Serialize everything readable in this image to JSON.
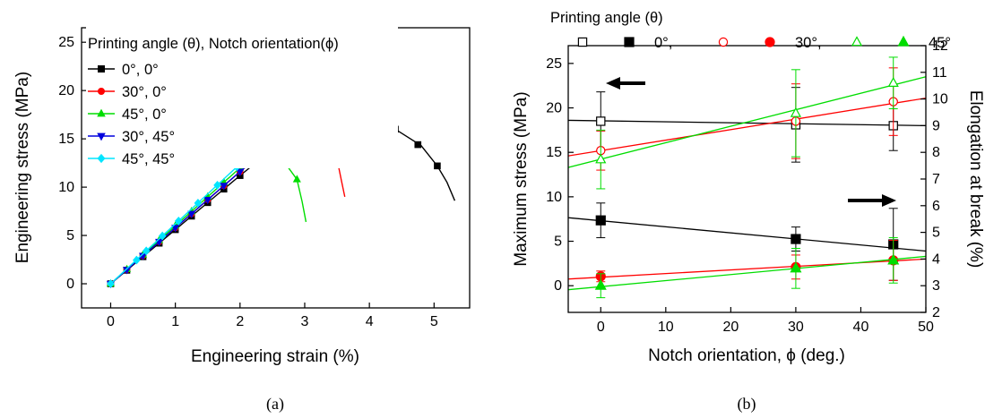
{
  "figure_panels": [
    "(a)",
    "(b)"
  ],
  "chart_data": [
    {
      "type": "line",
      "panel": "(a)",
      "xlabel": "Engineering strain (%)",
      "ylabel": "Engineering stress (MPa)",
      "xlim": [
        -0.45,
        5.55
      ],
      "ylim": [
        -2.5,
        26.5
      ],
      "xticks": [
        0,
        1,
        2,
        3,
        4,
        5
      ],
      "yticks": [
        0,
        5,
        10,
        15,
        20,
        25
      ],
      "grid": false,
      "legend_title": "Printing angle (θ), Notch orientation(ϕ)",
      "legend_position": "top-left",
      "series": [
        {
          "name": "0°, 0°",
          "color": "#000000",
          "marker": "square",
          "line": [
            [
              0,
              0
            ],
            [
              1,
              5.6
            ],
            [
              2,
              11.2
            ],
            [
              3,
              16.6
            ],
            [
              3.65,
              18.4
            ],
            [
              3.72,
              16.6
            ],
            [
              3.86,
              16.7
            ],
            [
              4.0,
              16.9
            ],
            [
              4.1,
              16.8
            ],
            [
              4.4,
              16.0
            ],
            [
              4.8,
              14.3
            ],
            [
              5.05,
              12.2
            ],
            [
              5.2,
              10.5
            ],
            [
              5.32,
              8.6
            ]
          ],
          "markers": [
            [
              0,
              0
            ],
            [
              0.25,
              1.4
            ],
            [
              0.5,
              2.8
            ],
            [
              0.75,
              4.2
            ],
            [
              1,
              5.6
            ],
            [
              1.25,
              7.0
            ],
            [
              1.5,
              8.4
            ],
            [
              1.75,
              9.8
            ],
            [
              2.0,
              11.2
            ],
            [
              2.25,
              12.6
            ],
            [
              2.5,
              14.0
            ],
            [
              2.75,
              15.3
            ],
            [
              3.0,
              16.6
            ],
            [
              3.25,
              17.4
            ],
            [
              3.6,
              18.4
            ],
            [
              4.0,
              16.9
            ],
            [
              4.4,
              16.0
            ],
            [
              4.75,
              14.4
            ],
            [
              5.05,
              12.2
            ]
          ]
        },
        {
          "name": "30°, 0°",
          "color": "#ff0000",
          "marker": "circle",
          "line": [
            [
              0,
              0
            ],
            [
              1,
              5.8
            ],
            [
              2,
              11.6
            ],
            [
              2.5,
              14.3
            ],
            [
              2.98,
              16.5
            ],
            [
              3.1,
              15.7
            ],
            [
              3.2,
              14.8
            ],
            [
              3.35,
              13.5
            ],
            [
              3.5,
              12.9
            ],
            [
              3.57,
              10.6
            ],
            [
              3.62,
              9.0
            ]
          ],
          "markers": [
            [
              0,
              0
            ],
            [
              0.25,
              1.45
            ],
            [
              0.5,
              2.9
            ],
            [
              0.75,
              4.35
            ],
            [
              1,
              5.8
            ],
            [
              1.25,
              7.25
            ],
            [
              1.5,
              8.7
            ],
            [
              1.75,
              10.15
            ],
            [
              2.0,
              11.6
            ],
            [
              2.25,
              13.0
            ],
            [
              2.5,
              14.3
            ],
            [
              2.7,
              15.2
            ],
            [
              2.95,
              16.4
            ],
            [
              3.2,
              14.8
            ],
            [
              3.5,
              12.9
            ]
          ]
        },
        {
          "name": "45°, 0°",
          "color": "#00dd00",
          "marker": "triangle-up",
          "line": [
            [
              0,
              0
            ],
            [
              1,
              6.0
            ],
            [
              2,
              12.0
            ],
            [
              2.6,
              15.6
            ],
            [
              2.66,
              14.0
            ],
            [
              2.75,
              12.0
            ],
            [
              2.88,
              10.8
            ],
            [
              2.96,
              8.5
            ],
            [
              3.02,
              6.4
            ]
          ],
          "markers": [
            [
              0,
              0
            ],
            [
              0.25,
              1.5
            ],
            [
              0.5,
              3.0
            ],
            [
              0.75,
              4.5
            ],
            [
              1,
              6.0
            ],
            [
              1.25,
              7.5
            ],
            [
              1.5,
              9.0
            ],
            [
              1.75,
              10.5
            ],
            [
              2.0,
              12.0
            ],
            [
              2.25,
              13.5
            ],
            [
              2.5,
              15.0
            ],
            [
              2.62,
              14.2
            ],
            [
              2.88,
              10.8
            ]
          ]
        },
        {
          "name": "30°, 45°",
          "color": "#0000dd",
          "marker": "triangle-down",
          "line": [
            [
              0,
              0
            ],
            [
              1,
              5.8
            ],
            [
              2,
              11.6
            ],
            [
              3,
              17.4
            ],
            [
              3.6,
              20.3
            ],
            [
              3.9,
              21.0
            ],
            [
              4.05,
              20.9
            ],
            [
              4.15,
              20.5
            ],
            [
              4.25,
              19.7
            ]
          ],
          "markers": [
            [
              0,
              0
            ],
            [
              0.25,
              1.45
            ],
            [
              0.5,
              2.9
            ],
            [
              0.75,
              4.35
            ],
            [
              1,
              5.8
            ],
            [
              1.25,
              7.25
            ],
            [
              1.5,
              8.7
            ],
            [
              1.75,
              10.15
            ],
            [
              2.0,
              11.6
            ],
            [
              2.25,
              13.05
            ],
            [
              2.5,
              14.5
            ],
            [
              2.75,
              15.95
            ],
            [
              3.0,
              17.4
            ],
            [
              3.3,
              18.9
            ],
            [
              3.6,
              20.1
            ],
            [
              4.02,
              20.9
            ]
          ]
        },
        {
          "name": "45°, 45°",
          "color": "#00e5ff",
          "marker": "diamond",
          "line": [
            [
              0,
              0
            ],
            [
              1,
              6.2
            ],
            [
              2,
              12.4
            ],
            [
              3,
              18.5
            ],
            [
              3.85,
              23.6
            ],
            [
              3.98,
              24.0
            ],
            [
              4.08,
              24.1
            ],
            [
              4.14,
              23.6
            ]
          ],
          "markers": [
            [
              0,
              0
            ],
            [
              0.4,
              2.45
            ],
            [
              0.55,
              3.4
            ],
            [
              0.8,
              4.95
            ],
            [
              1.05,
              6.5
            ],
            [
              1.35,
              8.35
            ],
            [
              1.65,
              10.2
            ],
            [
              1.95,
              12.1
            ],
            [
              2.2,
              13.6
            ],
            [
              2.45,
              15.2
            ],
            [
              2.75,
              17.0
            ],
            [
              3.0,
              18.5
            ],
            [
              3.25,
              20.1
            ],
            [
              3.55,
              21.9
            ],
            [
              3.85,
              23.7
            ]
          ]
        }
      ]
    },
    {
      "type": "scatter",
      "panel": "(b)",
      "xlabel": "Notch orientation, ϕ (deg.)",
      "ylabel": "Maximum stress (MPa)",
      "y2label": "Elongation at break (%)",
      "xlim": [
        -5,
        50
      ],
      "ylim": [
        -3,
        27
      ],
      "y2lim": [
        2,
        12
      ],
      "xticks": [
        0,
        10,
        20,
        30,
        40,
        50
      ],
      "yticks": [
        0,
        5,
        10,
        15,
        20,
        25
      ],
      "y2ticks": [
        2,
        3,
        4,
        5,
        6,
        7,
        8,
        9,
        10,
        11,
        12
      ],
      "grid": false,
      "legend_title": "Printing angle (θ)",
      "legend_labels": [
        "0°,",
        "30°,",
        "45°"
      ],
      "legend_position": "top",
      "arrows": [
        "left arrow pointing to left axis (stress, open symbols)",
        "right arrow pointing to right axis (elongation, filled symbols)"
      ],
      "series": [
        {
          "name": "0° stress",
          "color": "#000000",
          "marker": "square",
          "filled": false,
          "axis": "left",
          "x": [
            0,
            30,
            45
          ],
          "y": [
            18.5,
            18.1,
            18.0
          ],
          "err": [
            3.3,
            4.2,
            2.8
          ],
          "fit": [
            [
              -5,
              18.6
            ],
            [
              50,
              18.0
            ]
          ]
        },
        {
          "name": "30° stress",
          "color": "#ff0000",
          "marker": "circle",
          "filled": false,
          "axis": "left",
          "x": [
            0,
            30,
            45
          ],
          "y": [
            15.2,
            18.5,
            20.7
          ],
          "err": [
            2.2,
            4.2,
            3.8
          ],
          "fit": [
            [
              -5,
              14.6
            ],
            [
              50,
              21.1
            ]
          ]
        },
        {
          "name": "45° stress",
          "color": "#00dd00",
          "marker": "triangle-up",
          "filled": false,
          "axis": "left",
          "x": [
            0,
            30,
            45
          ],
          "y": [
            14.2,
            19.4,
            22.8
          ],
          "err": [
            3.3,
            4.9,
            2.9
          ],
          "fit": [
            [
              -5,
              13.3
            ],
            [
              50,
              23.5
            ]
          ]
        },
        {
          "name": "0° elongation",
          "color": "#000000",
          "marker": "square",
          "filled": true,
          "axis": "right",
          "x": [
            0,
            30,
            45
          ],
          "y": [
            5.45,
            4.75,
            4.55
          ],
          "err": [
            0.65,
            0.45,
            1.35
          ],
          "fit": [
            [
              -5,
              5.55
            ],
            [
              50,
              4.3
            ]
          ]
        },
        {
          "name": "30° elongation",
          "color": "#ff0000",
          "marker": "circle",
          "filled": true,
          "axis": "right",
          "x": [
            0,
            30,
            45
          ],
          "y": [
            3.35,
            3.7,
            3.95
          ],
          "err": [
            0.2,
            0.45,
            0.75
          ],
          "fit": [
            [
              -5,
              3.25
            ],
            [
              50,
              4.0
            ]
          ]
        },
        {
          "name": "45° elongation",
          "color": "#00dd00",
          "marker": "triangle-up",
          "filled": true,
          "axis": "right",
          "x": [
            0,
            30,
            45
          ],
          "y": [
            3.0,
            3.65,
            3.95
          ],
          "err": [
            0.45,
            0.75,
            0.85
          ],
          "fit": [
            [
              -5,
              2.85
            ],
            [
              50,
              4.1
            ]
          ]
        }
      ]
    }
  ]
}
